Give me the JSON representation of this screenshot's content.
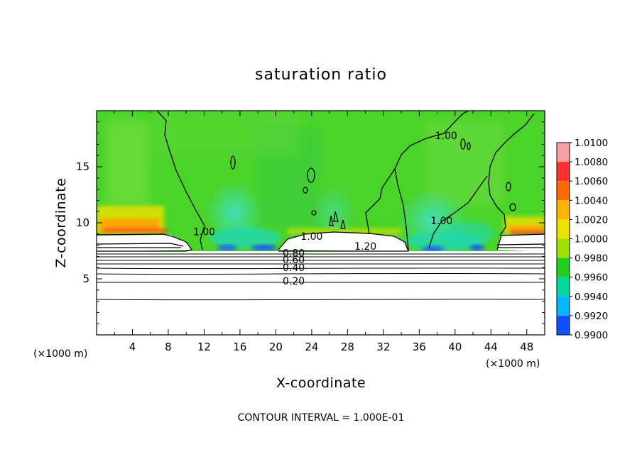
{
  "chart_data": {
    "type": "heatmap",
    "title": "saturation ratio",
    "xlabel": "X-coordinate",
    "ylabel": "Z-coordinate",
    "x_unit": "(×1000 m)",
    "y_unit": "(×1000 m)",
    "xlim": [
      0,
      50
    ],
    "ylim": [
      0,
      20
    ],
    "x_ticks": [
      4,
      8,
      12,
      16,
      20,
      24,
      28,
      32,
      36,
      40,
      44,
      48
    ],
    "y_ticks": [
      5,
      10,
      15
    ],
    "colorbar": {
      "labels": [
        "1.0100",
        "1.0080",
        "1.0060",
        "1.0040",
        "1.0020",
        "1.0000",
        "0.9980",
        "0.9960",
        "0.9940",
        "0.9920",
        "0.9900"
      ],
      "colors": [
        "#f4a0a0",
        "#ff3030",
        "#ff6a00",
        "#ffb400",
        "#f0e000",
        "#a0e000",
        "#20d020",
        "#00d8a0",
        "#00b8ff",
        "#1050ff",
        "#1010c0",
        "#5010a0"
      ]
    },
    "contour_labels": [
      {
        "text": "0.20",
        "x": 22,
        "y": 4.8
      },
      {
        "text": "0.40",
        "x": 22,
        "y": 6.0
      },
      {
        "text": "0.60",
        "x": 22,
        "y": 6.7
      },
      {
        "text": "0.80",
        "x": 22,
        "y": 7.3
      },
      {
        "text": "1.00",
        "x": 24,
        "y": 8.8
      },
      {
        "text": "1.20",
        "x": 30,
        "y": 7.9
      },
      {
        "text": "1.00",
        "x": 12,
        "y": 9.2
      },
      {
        "text": "1.00",
        "x": 38.5,
        "y": 10.2
      },
      {
        "text": "1.00",
        "x": 39,
        "y": 17.8
      }
    ],
    "contour_interval": "1.000E-01"
  },
  "footer": {
    "contour_interval_text": "CONTOUR INTERVAL = 1.000E-01"
  }
}
